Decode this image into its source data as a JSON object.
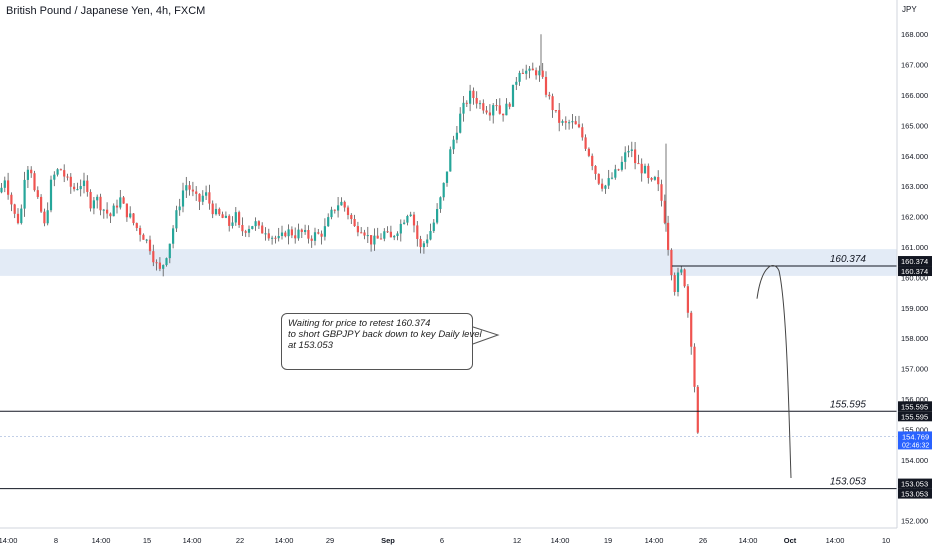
{
  "header": {
    "title": "British Pound / Japanese Yen, 4h, FXCM"
  },
  "colors": {
    "up": "#26a69a",
    "down": "#ef5350",
    "wick": "#555555",
    "zone": "#e3ebf6",
    "price_tag": "#2962ff",
    "line": "#131722"
  },
  "annotation": {
    "line1": "Waiting for price to retest 160.374",
    "line2": "to short GBPJPY back down to key Daily level",
    "line3": "at 153.053"
  },
  "chart_data": {
    "type": "candlestick",
    "symbol": "GBPJPY",
    "timeframe": "4h",
    "y_unit": "JPY",
    "ylim": [
      151.7,
      168.9
    ],
    "y_ticks": [
      "152.000",
      "153.000",
      "154.000",
      "155.000",
      "156.000",
      "157.000",
      "158.000",
      "159.000",
      "160.000",
      "161.000",
      "162.000",
      "163.000",
      "164.000",
      "165.000",
      "166.000",
      "167.000",
      "168.000"
    ],
    "x_ticks": [
      "14:00",
      "8",
      "14:00",
      "15",
      "14:00",
      "22",
      "14:00",
      "29",
      "Sep",
      "6",
      "12",
      "14:00",
      "19",
      "14:00",
      "26",
      "14:00",
      "Oct",
      "14:00",
      "10"
    ],
    "horizontal_levels": [
      {
        "label": "160.374",
        "value": 160.374
      },
      {
        "label": "155.595",
        "value": 155.595
      },
      {
        "label": "153.053",
        "value": 153.053
      }
    ],
    "price_axis_tags": [
      {
        "label": "160.374",
        "value": 160.374,
        "style": "dark"
      },
      {
        "label": "160.374",
        "value": 160.374,
        "style": "dark"
      },
      {
        "label": "155.595",
        "value": 155.595,
        "style": "dark"
      },
      {
        "label": "155.595",
        "value": 155.595,
        "style": "dark"
      },
      {
        "label": "154.769",
        "value": 154.769,
        "style": "blue",
        "sub": "02:46:32"
      },
      {
        "label": "153.053",
        "value": 153.053,
        "style": "dark"
      },
      {
        "label": "153.053",
        "value": 153.053,
        "style": "dark"
      }
    ],
    "zone": {
      "from": 160.05,
      "to": 160.93
    },
    "current_price": 154.769,
    "projection": {
      "start": 159.3,
      "peak": 160.35,
      "end": 153.4
    },
    "close_path": [
      [
        0,
        162.8
      ],
      [
        5,
        163.3
      ],
      [
        10,
        162.6
      ],
      [
        15,
        162.0
      ],
      [
        20,
        161.8
      ],
      [
        25,
        163.5
      ],
      [
        30,
        163.8
      ],
      [
        35,
        162.7
      ],
      [
        40,
        162.3
      ],
      [
        45,
        161.6
      ],
      [
        50,
        163.0
      ],
      [
        55,
        163.4
      ],
      [
        60,
        163.6
      ],
      [
        65,
        163.3
      ],
      [
        70,
        163.0
      ],
      [
        75,
        162.9
      ],
      [
        80,
        163.1
      ],
      [
        85,
        163.0
      ],
      [
        90,
        162.4
      ],
      [
        95,
        162.7
      ],
      [
        100,
        162.4
      ],
      [
        105,
        162.2
      ],
      [
        110,
        162.0
      ],
      [
        115,
        162.3
      ],
      [
        120,
        162.6
      ],
      [
        125,
        162.2
      ],
      [
        130,
        162.0
      ],
      [
        135,
        161.7
      ],
      [
        140,
        161.5
      ],
      [
        145,
        161.3
      ],
      [
        150,
        161.0
      ],
      [
        155,
        160.5
      ],
      [
        160,
        160.2
      ],
      [
        165,
        160.6
      ],
      [
        170,
        161.2
      ],
      [
        175,
        161.9
      ],
      [
        180,
        162.5
      ],
      [
        185,
        163.1
      ],
      [
        190,
        162.9
      ],
      [
        195,
        162.6
      ],
      [
        200,
        162.5
      ],
      [
        205,
        162.8
      ],
      [
        210,
        162.4
      ],
      [
        215,
        162.1
      ],
      [
        220,
        162.0
      ],
      [
        225,
        161.9
      ],
      [
        230,
        161.7
      ],
      [
        235,
        162.1
      ],
      [
        240,
        161.5
      ],
      [
        245,
        161.6
      ],
      [
        250,
        161.7
      ],
      [
        255,
        161.8
      ],
      [
        260,
        161.5
      ],
      [
        265,
        161.6
      ],
      [
        270,
        161.4
      ],
      [
        275,
        161.3
      ],
      [
        280,
        161.2
      ],
      [
        285,
        161.5
      ],
      [
        290,
        161.5
      ],
      [
        295,
        161.4
      ],
      [
        300,
        161.5
      ],
      [
        305,
        161.4
      ],
      [
        310,
        161.3
      ],
      [
        315,
        161.4
      ],
      [
        320,
        161.4
      ],
      [
        325,
        161.6
      ],
      [
        330,
        162.0
      ],
      [
        335,
        162.3
      ],
      [
        340,
        162.5
      ],
      [
        345,
        162.3
      ],
      [
        350,
        162.0
      ],
      [
        355,
        161.6
      ],
      [
        360,
        161.7
      ],
      [
        365,
        161.5
      ],
      [
        370,
        161.2
      ],
      [
        375,
        161.2
      ],
      [
        380,
        161.3
      ],
      [
        385,
        161.5
      ],
      [
        390,
        161.2
      ],
      [
        395,
        161.5
      ],
      [
        400,
        161.7
      ],
      [
        405,
        162.0
      ],
      [
        410,
        162.3
      ],
      [
        415,
        161.6
      ],
      [
        420,
        160.9
      ],
      [
        425,
        161.2
      ],
      [
        430,
        161.5
      ],
      [
        435,
        161.9
      ],
      [
        440,
        162.5
      ],
      [
        445,
        163.2
      ],
      [
        450,
        164.1
      ],
      [
        455,
        164.7
      ],
      [
        460,
        165.3
      ],
      [
        465,
        165.7
      ],
      [
        470,
        166.0
      ],
      [
        475,
        165.9
      ],
      [
        480,
        165.7
      ],
      [
        485,
        165.6
      ],
      [
        490,
        165.5
      ],
      [
        495,
        165.9
      ],
      [
        500,
        165.4
      ],
      [
        505,
        165.5
      ],
      [
        510,
        165.8
      ],
      [
        515,
        166.4
      ],
      [
        520,
        166.9
      ],
      [
        525,
        166.8
      ],
      [
        530,
        166.7
      ],
      [
        535,
        166.8
      ],
      [
        540,
        166.7
      ],
      [
        545,
        166.2
      ],
      [
        550,
        165.8
      ],
      [
        555,
        165.4
      ],
      [
        560,
        165.1
      ],
      [
        565,
        165.0
      ],
      [
        570,
        165.1
      ],
      [
        575,
        165.0
      ],
      [
        580,
        164.8
      ],
      [
        585,
        164.4
      ],
      [
        590,
        164.0
      ],
      [
        595,
        163.5
      ],
      [
        600,
        163.1
      ],
      [
        605,
        163.0
      ],
      [
        610,
        163.2
      ],
      [
        615,
        163.4
      ],
      [
        620,
        163.6
      ],
      [
        625,
        164.0
      ],
      [
        630,
        164.3
      ],
      [
        635,
        163.8
      ],
      [
        640,
        163.6
      ],
      [
        645,
        163.5
      ],
      [
        650,
        163.0
      ],
      [
        655,
        163.2
      ],
      [
        660,
        162.8
      ],
      [
        665,
        161.9
      ],
      [
        670,
        160.5
      ],
      [
        675,
        159.6
      ],
      [
        680,
        160.3
      ],
      [
        685,
        159.8
      ],
      [
        690,
        158.2
      ],
      [
        695,
        156.2
      ],
      [
        698,
        154.8
      ]
    ]
  }
}
